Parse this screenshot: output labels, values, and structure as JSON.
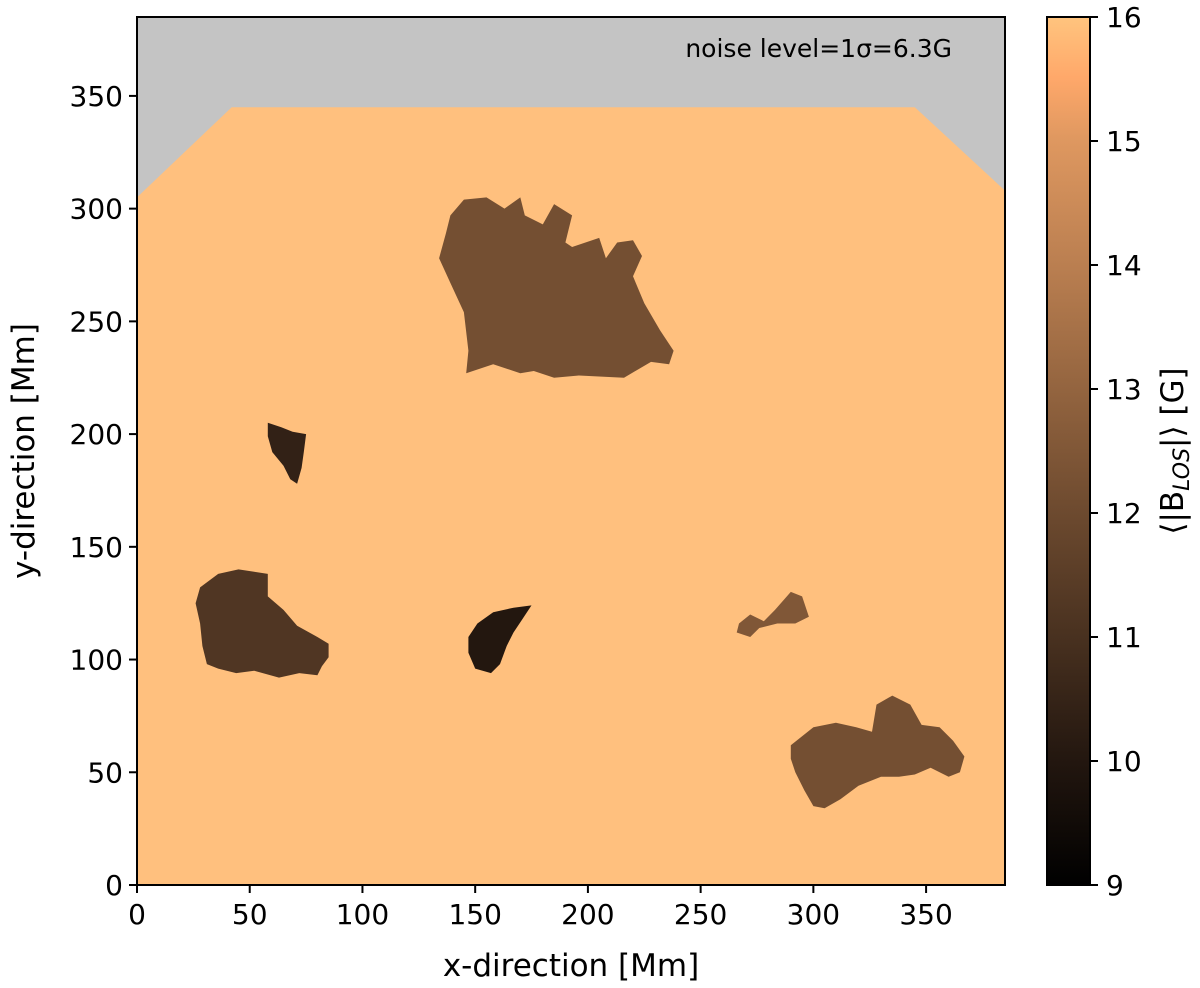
{
  "chart_data": {
    "type": "heatmap",
    "xlabel": "x-direction [Mm]",
    "ylabel": "y-direction [Mm]",
    "xlim": [
      0,
      385
    ],
    "ylim": [
      0,
      385
    ],
    "x_ticks": [
      0,
      50,
      100,
      150,
      200,
      250,
      300,
      350
    ],
    "y_ticks": [
      0,
      50,
      100,
      150,
      200,
      250,
      300,
      350
    ],
    "annotation": "noise level=1σ=6.3G",
    "colorbar": {
      "label": "⟨|B_LOS|⟩ [G]",
      "label_main": "⟨|B",
      "label_sub": "LOS",
      "label_tail": "|⟩ [G]",
      "range": [
        9,
        16
      ],
      "ticks": [
        9,
        10,
        11,
        12,
        13,
        14,
        15,
        16
      ]
    },
    "background_value": 16,
    "masked_color": "#c4c4c4",
    "masked_region_outline": [
      [
        0,
        385
      ],
      [
        385,
        385
      ],
      [
        385,
        308
      ],
      [
        345,
        345
      ],
      [
        42,
        345
      ],
      [
        0,
        305
      ]
    ],
    "regions": [
      {
        "name": "upper-center patch",
        "value": 12.2,
        "outline": [
          [
            139,
            297
          ],
          [
            145,
            304
          ],
          [
            155,
            305
          ],
          [
            163,
            300
          ],
          [
            170,
            305
          ],
          [
            172,
            297
          ],
          [
            180,
            293
          ],
          [
            185,
            302
          ],
          [
            193,
            297
          ],
          [
            190,
            285
          ],
          [
            193,
            283
          ],
          [
            205,
            287
          ],
          [
            208,
            278
          ],
          [
            213,
            285
          ],
          [
            220,
            286
          ],
          [
            224,
            279
          ],
          [
            220,
            270
          ],
          [
            225,
            258
          ],
          [
            232,
            246
          ],
          [
            238,
            237
          ],
          [
            236,
            231
          ],
          [
            228,
            232
          ],
          [
            216,
            225
          ],
          [
            196,
            226
          ],
          [
            185,
            225
          ],
          [
            176,
            228
          ],
          [
            170,
            227
          ],
          [
            158,
            231
          ],
          [
            146,
            227
          ],
          [
            147,
            237
          ],
          [
            145,
            254
          ],
          [
            139,
            267
          ],
          [
            134,
            278
          ],
          [
            137,
            289
          ]
        ]
      },
      {
        "name": "upper-left small patch",
        "value": 10.4,
        "outline": [
          [
            58,
            205
          ],
          [
            64,
            203
          ],
          [
            69,
            201
          ],
          [
            75,
            200
          ],
          [
            74,
            192
          ],
          [
            73,
            185
          ],
          [
            71,
            178
          ],
          [
            68,
            180
          ],
          [
            65,
            186
          ],
          [
            60,
            192
          ],
          [
            58,
            199
          ]
        ]
      },
      {
        "name": "left patch",
        "value": 11.2,
        "outline": [
          [
            28,
            132
          ],
          [
            36,
            138
          ],
          [
            45,
            140
          ],
          [
            58,
            138
          ],
          [
            58,
            128
          ],
          [
            65,
            122
          ],
          [
            71,
            115
          ],
          [
            80,
            110
          ],
          [
            85,
            107
          ],
          [
            85,
            101
          ],
          [
            82,
            97
          ],
          [
            80,
            93
          ],
          [
            72,
            94
          ],
          [
            63,
            92
          ],
          [
            52,
            95
          ],
          [
            44,
            94
          ],
          [
            36,
            96
          ],
          [
            31,
            98
          ],
          [
            29,
            106
          ],
          [
            28,
            116
          ],
          [
            26,
            125
          ]
        ]
      },
      {
        "name": "center dark patch",
        "value": 10.0,
        "outline": [
          [
            151,
            116
          ],
          [
            158,
            121
          ],
          [
            167,
            123
          ],
          [
            175,
            124
          ],
          [
            171,
            118
          ],
          [
            167,
            112
          ],
          [
            164,
            106
          ],
          [
            161,
            98
          ],
          [
            157,
            94
          ],
          [
            150,
            96
          ],
          [
            147,
            103
          ],
          [
            147,
            110
          ]
        ]
      },
      {
        "name": "right small patch",
        "value": 12.5,
        "outline": [
          [
            267,
            116
          ],
          [
            272,
            120
          ],
          [
            278,
            117
          ],
          [
            283,
            122
          ],
          [
            290,
            130
          ],
          [
            295,
            128
          ],
          [
            298,
            119
          ],
          [
            292,
            116
          ],
          [
            284,
            116
          ],
          [
            276,
            114
          ],
          [
            272,
            110
          ],
          [
            266,
            112
          ]
        ]
      },
      {
        "name": "lower-right patch",
        "value": 12.2,
        "outline": [
          [
            290,
            62
          ],
          [
            300,
            70
          ],
          [
            310,
            72
          ],
          [
            319,
            70
          ],
          [
            326,
            68
          ],
          [
            328,
            80
          ],
          [
            335,
            84
          ],
          [
            343,
            80
          ],
          [
            348,
            71
          ],
          [
            356,
            70
          ],
          [
            362,
            64
          ],
          [
            367,
            57
          ],
          [
            365,
            50
          ],
          [
            360,
            48
          ],
          [
            352,
            52
          ],
          [
            345,
            49
          ],
          [
            338,
            48
          ],
          [
            330,
            48
          ],
          [
            320,
            44
          ],
          [
            312,
            38
          ],
          [
            305,
            34
          ],
          [
            300,
            35
          ],
          [
            296,
            42
          ],
          [
            292,
            50
          ],
          [
            290,
            56
          ]
        ]
      }
    ]
  }
}
